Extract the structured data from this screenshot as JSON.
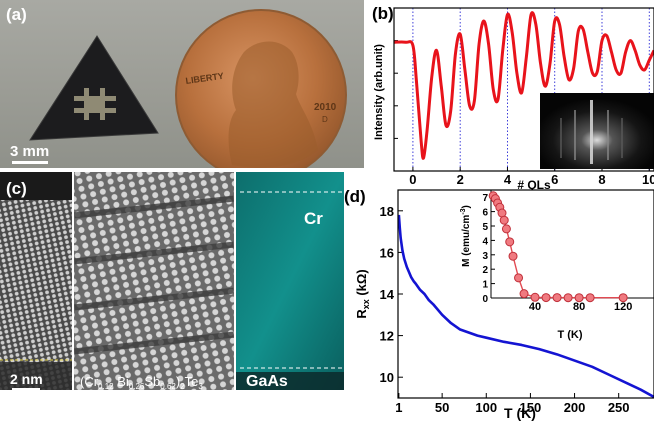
{
  "panel_a": {
    "label": "(a)",
    "scalebar_text": "3 mm",
    "coin": {
      "motto": "LIBERTY",
      "year": "2010",
      "mint": "D"
    }
  },
  "panel_b": {
    "label": "(b)",
    "chart_data": {
      "type": "line",
      "title": "",
      "xlabel": "# QLs",
      "ylabel": "Intensity (arb.unit)",
      "xlim": [
        -0.8,
        10.2
      ],
      "xticks": [
        0,
        2,
        4,
        6,
        8,
        10
      ],
      "xtick_labels": [
        "0",
        "2",
        "4",
        "6",
        "8",
        "10"
      ],
      "vertical_gridlines_at": [
        0,
        2,
        4,
        6,
        8,
        10
      ],
      "series": [
        {
          "color": "#e8131b",
          "x": [
            -0.8,
            -0.3,
            0,
            0.15,
            0.35,
            0.45,
            0.6,
            0.8,
            1.0,
            1.2,
            1.4,
            1.6,
            1.8,
            2.0,
            2.2,
            2.4,
            2.6,
            2.8,
            3.0,
            3.2,
            3.4,
            3.6,
            3.8,
            4.0,
            4.2,
            4.4,
            4.6,
            4.8,
            5.0,
            5.2,
            5.4,
            5.6,
            5.8,
            6.0,
            6.2,
            6.4,
            6.6,
            6.8,
            7.0,
            7.2,
            7.4,
            7.6,
            7.8,
            8.0,
            8.2,
            8.4,
            8.6,
            8.8,
            9.0,
            9.2,
            9.4,
            9.6,
            9.8,
            10.0,
            10.2
          ],
          "y": [
            0.79,
            0.79,
            0.77,
            0.55,
            0.18,
            0.08,
            0.25,
            0.58,
            0.74,
            0.52,
            0.28,
            0.37,
            0.72,
            0.84,
            0.62,
            0.4,
            0.43,
            0.78,
            0.92,
            0.78,
            0.5,
            0.44,
            0.74,
            0.96,
            0.85,
            0.6,
            0.48,
            0.7,
            0.96,
            0.9,
            0.66,
            0.52,
            0.66,
            0.92,
            0.9,
            0.7,
            0.56,
            0.63,
            0.86,
            0.87,
            0.73,
            0.6,
            0.61,
            0.8,
            0.83,
            0.73,
            0.62,
            0.6,
            0.73,
            0.8,
            0.74,
            0.65,
            0.62,
            0.68,
            0.74
          ]
        }
      ],
      "inset": "RHEED pattern image"
    }
  },
  "panel_c": {
    "label": "(c)",
    "scalebar_text": "2 nm",
    "formula": {
      "prefix": "(Cr",
      "s1": "0.12",
      "mid1": " Bi",
      "s2": "0.26",
      "mid2": "Sb",
      "s3": "0.62",
      "mid3": ")",
      "s4": "2",
      "mid4": "Te",
      "s5": "3"
    },
    "map_top_label": "Cr",
    "map_bottom_label": "GaAs"
  },
  "panel_d": {
    "label": "(d)",
    "chart_data": {
      "type": "line",
      "title": "",
      "xlabel": "T (K)",
      "ylabel_main": "R",
      "ylabel_sub": "xx",
      "ylabel_unit": " (kΩ)",
      "xlim": [
        0,
        290
      ],
      "ylim": [
        9,
        19
      ],
      "xticks": [
        1,
        50,
        100,
        150,
        200,
        250
      ],
      "xtick_labels": [
        "1",
        "50",
        "100",
        "150",
        "200",
        "250"
      ],
      "yticks": [
        10,
        12,
        14,
        16,
        18
      ],
      "ytick_labels": [
        "10",
        "12",
        "14",
        "16",
        "18"
      ],
      "series": [
        {
          "color": "#1414d2",
          "x": [
            1,
            2,
            3,
            5,
            7,
            10,
            12,
            15,
            18,
            20,
            25,
            30,
            35,
            40,
            50,
            60,
            70,
            80,
            90,
            100,
            120,
            140,
            160,
            180,
            200,
            220,
            240,
            260,
            275,
            290
          ],
          "y": [
            17.8,
            17.2,
            16.7,
            16.1,
            15.7,
            15.3,
            15.1,
            14.8,
            14.6,
            14.5,
            14.2,
            14.0,
            13.7,
            13.5,
            13.0,
            12.6,
            12.3,
            12.15,
            12.0,
            11.9,
            11.7,
            11.55,
            11.35,
            11.1,
            10.8,
            10.5,
            10.1,
            9.7,
            9.4,
            9.05
          ]
        }
      ],
      "inset": {
        "xlabel": "T (K)",
        "ylabel_main": "M (emu/cm",
        "ylabel_sup": "-3",
        "ylabel_end": ")",
        "xlim": [
          0,
          148
        ],
        "ylim": [
          0,
          7.5
        ],
        "xticks": [
          40,
          80,
          120
        ],
        "xtick_labels": [
          "40",
          "80",
          "120"
        ],
        "yticks": [
          0,
          1,
          2,
          3,
          4,
          5,
          6,
          7
        ],
        "ytick_labels": [
          "0",
          "1",
          "2",
          "3",
          "4",
          "5",
          "6",
          "7"
        ],
        "series": [
          {
            "marker_color": "#f07a80",
            "x": [
              2,
              4,
              6,
              8,
              10,
              12,
              14,
              17,
              20,
              25,
              30,
              40,
              50,
              60,
              70,
              80,
              90,
              120
            ],
            "y": [
              7.1,
              6.9,
              6.6,
              6.3,
              5.9,
              5.4,
              4.8,
              3.9,
              2.9,
              1.4,
              0.3,
              0.05,
              0.03,
              0.03,
              0.02,
              0.02,
              0.02,
              0.02
            ]
          }
        ]
      }
    }
  }
}
